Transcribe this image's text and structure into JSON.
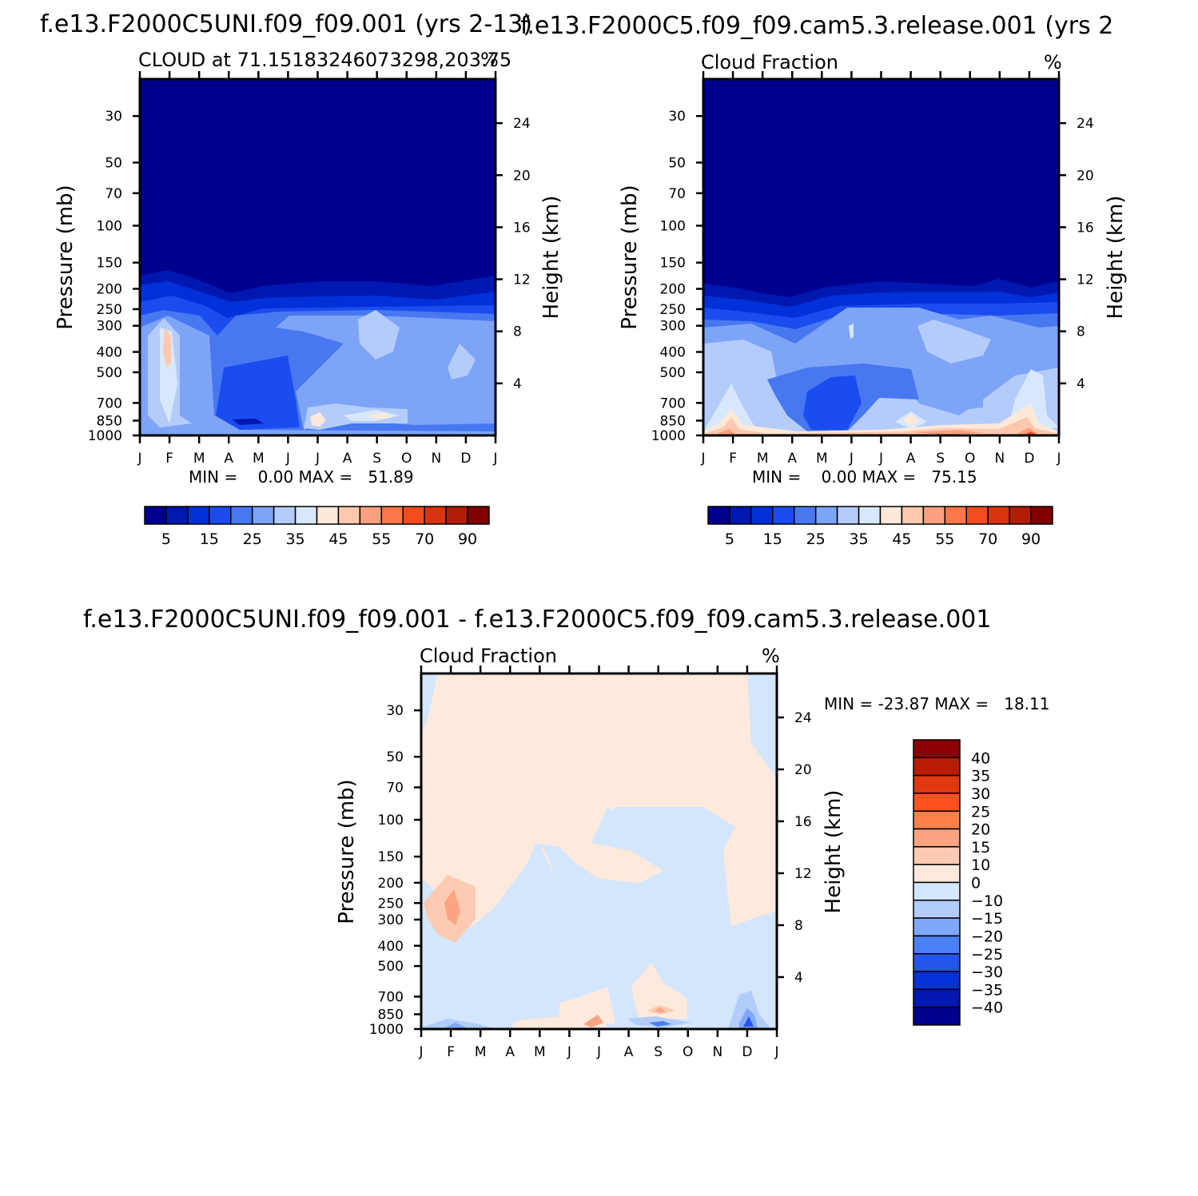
{
  "figure": {
    "panels": [
      {
        "id": "p1",
        "header": "f.e13.F2000C5UNI.f09_f09.001 (yrs 2-13)",
        "subtitle_left": "CLOUD at 71.15183246073298,203.75",
        "subtitle_right": "%",
        "ylabel_left": "Pressure (mb)",
        "ylabel_right": "Height (km)",
        "minmax": "MIN =    0.00 MAX =   51.89"
      },
      {
        "id": "p2",
        "header": "f.e13.F2000C5.f09_f09.cam5.3.release.001 (yrs 2",
        "subtitle_left": "Cloud Fraction",
        "subtitle_right": "%",
        "ylabel_left": "Pressure (mb)",
        "ylabel_right": "Height (km)",
        "minmax": "MIN =    0.00 MAX =   75.15"
      },
      {
        "id": "p3",
        "header": "f.e13.F2000C5UNI.f09_f09.001 - f.e13.F2000C5.f09_f09.cam5.3.release.001",
        "subtitle_left": "Cloud Fraction",
        "subtitle_right": "%",
        "ylabel_left": "Pressure (mb)",
        "ylabel_right": "Height (km)",
        "minmax": "MIN = -23.87 MAX =   18.11"
      }
    ]
  },
  "chart_data": [
    {
      "type": "heatmap",
      "title": "CLOUD at 71.15183246073298,203.75",
      "units": "%",
      "x_tick_labels": [
        "J",
        "F",
        "M",
        "A",
        "M",
        "J",
        "J",
        "A",
        "S",
        "O",
        "N",
        "D",
        "J"
      ],
      "y_pressure_ticks": [
        30,
        50,
        70,
        100,
        150,
        200,
        250,
        300,
        400,
        500,
        700,
        850,
        1000
      ],
      "y_height_ticks": [
        24,
        20,
        16,
        12,
        8,
        4
      ],
      "ylim_pressure": [
        1000,
        22
      ],
      "min": 0.0,
      "max": 51.89,
      "colorbar_levels": [
        5,
        15,
        25,
        35,
        45,
        55,
        70,
        90
      ],
      "colorbar_colors": [
        "#00008f",
        "#0018b0",
        "#0030d8",
        "#1a4cf0",
        "#4878f0",
        "#7ea4f8",
        "#b4ccfc",
        "#d8e8fc",
        "#fee9d8",
        "#fdc8ae",
        "#fca080",
        "#fb7848",
        "#f44c1c",
        "#d83410",
        "#b01c08",
        "#800000"
      ]
    },
    {
      "type": "heatmap",
      "title": "Cloud Fraction",
      "units": "%",
      "x_tick_labels": [
        "J",
        "F",
        "M",
        "A",
        "M",
        "J",
        "J",
        "A",
        "S",
        "O",
        "N",
        "D",
        "J"
      ],
      "y_pressure_ticks": [
        30,
        50,
        70,
        100,
        150,
        200,
        250,
        300,
        400,
        500,
        700,
        850,
        1000
      ],
      "y_height_ticks": [
        24,
        20,
        16,
        12,
        8,
        4
      ],
      "ylim_pressure": [
        1000,
        22
      ],
      "min": 0.0,
      "max": 75.15,
      "colorbar_levels": [
        5,
        15,
        25,
        35,
        45,
        55,
        70,
        90
      ],
      "colorbar_colors": [
        "#00008f",
        "#0018b0",
        "#0030d8",
        "#1a4cf0",
        "#4878f0",
        "#7ea4f8",
        "#b4ccfc",
        "#d8e8fc",
        "#fee9d8",
        "#fdc8ae",
        "#fca080",
        "#fb7848",
        "#f44c1c",
        "#d83410",
        "#b01c08",
        "#800000"
      ]
    },
    {
      "type": "heatmap",
      "title": "Cloud Fraction",
      "units": "%",
      "x_tick_labels": [
        "J",
        "F",
        "M",
        "A",
        "M",
        "J",
        "J",
        "A",
        "S",
        "O",
        "N",
        "D",
        "J"
      ],
      "y_pressure_ticks": [
        30,
        50,
        70,
        100,
        150,
        200,
        250,
        300,
        400,
        500,
        700,
        850,
        1000
      ],
      "y_height_ticks": [
        24,
        20,
        16,
        12,
        8,
        4
      ],
      "ylim_pressure": [
        1000,
        22
      ],
      "min": -23.87,
      "max": 18.11,
      "colorbar_levels": [
        40,
        35,
        30,
        25,
        20,
        15,
        10,
        0,
        -10,
        -15,
        -20,
        -25,
        -30,
        -35,
        -40
      ],
      "colorbar_colors": [
        "#8b0000",
        "#b81c04",
        "#e03810",
        "#ff5020",
        "#ff8048",
        "#fca482",
        "#fecab2",
        "#feeadc",
        "#d4e6fc",
        "#b2ccfc",
        "#80a8fa",
        "#4a80f4",
        "#2456ee",
        "#0630d8",
        "#0218b0",
        "#00008f"
      ]
    }
  ]
}
